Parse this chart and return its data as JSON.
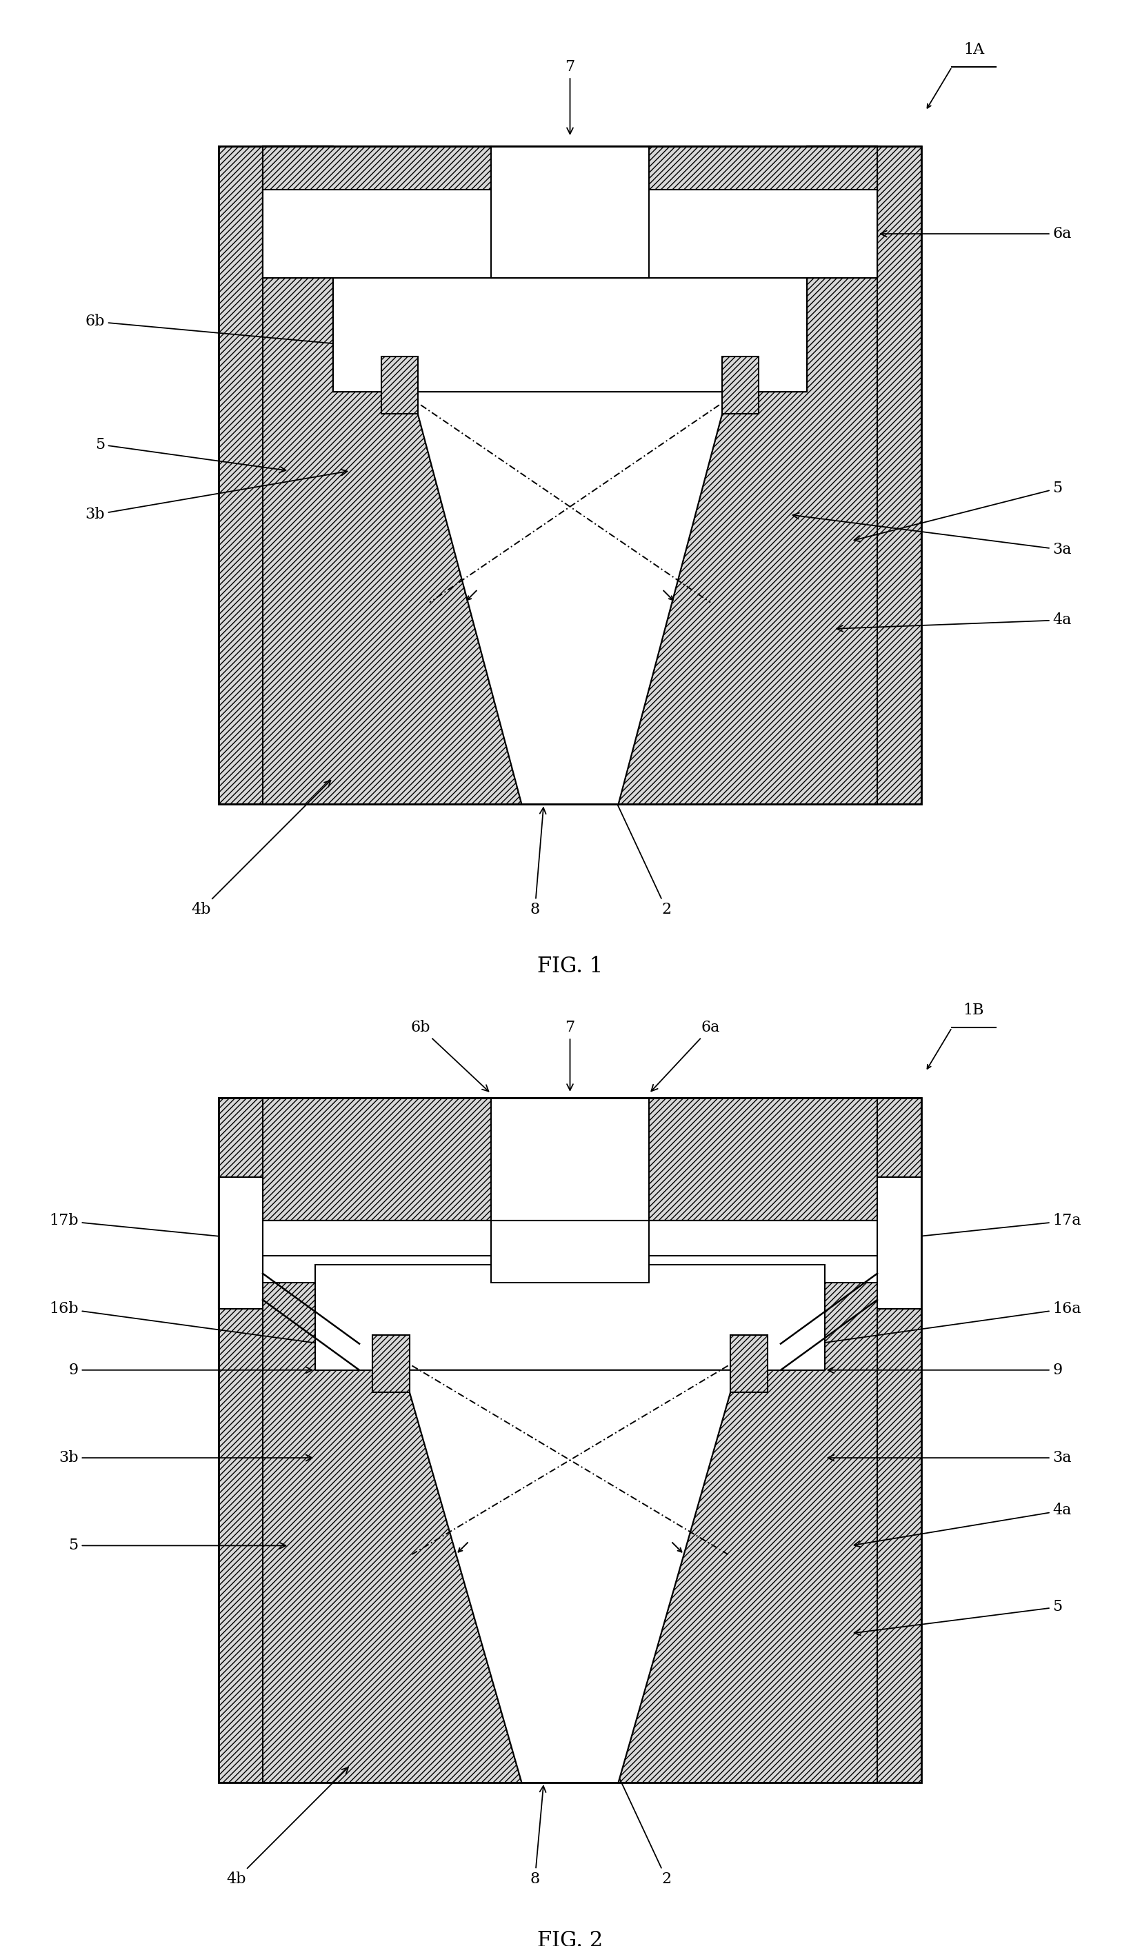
{
  "bg_color": "#ffffff",
  "hatch_color": "#000000",
  "hatch_pattern": "////",
  "fig1_label": "FIG. 1",
  "fig2_label": "FIG. 2",
  "ref1": "1A",
  "ref2": "1B",
  "fontsize": 16,
  "title_fontsize": 22
}
